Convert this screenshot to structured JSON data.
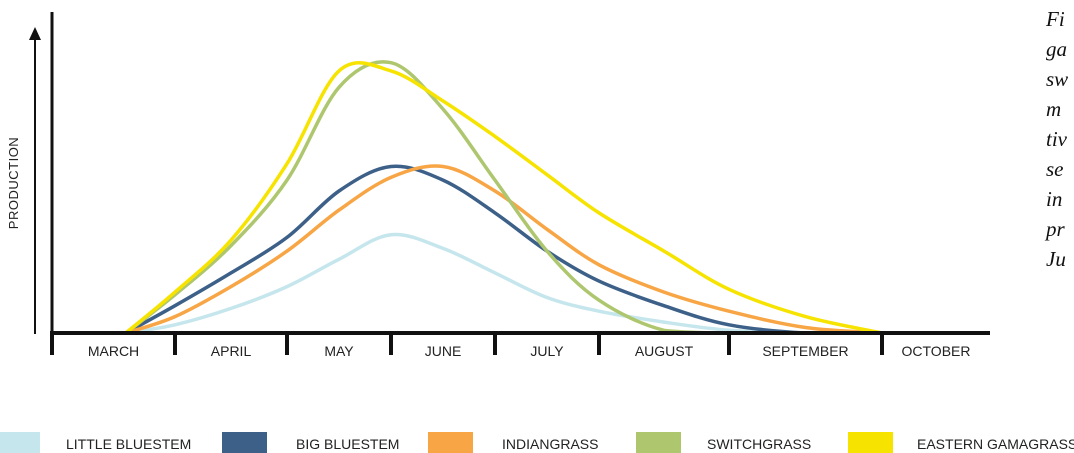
{
  "caption_lines": [
    "Fi",
    "ga",
    "sw",
    "m",
    "tiv",
    "se",
    "in",
    "pr",
    "Ju"
  ],
  "chart_data": {
    "type": "line",
    "title": "",
    "xlabel": "",
    "ylabel": "PRODUCTION",
    "categories": [
      "MARCH",
      "APRIL",
      "MAY",
      "JUNE",
      "JULY",
      "AUGUST",
      "SEPTEMBER",
      "OCTOBER"
    ],
    "grid": false,
    "legend": "bottom",
    "ylim": [
      0,
      100
    ],
    "y_tick_labels_shown": false,
    "x": [
      0.6,
      1.0,
      1.5,
      2.0,
      2.5,
      3.0,
      3.5,
      4.0,
      4.5,
      5.0,
      5.5,
      6.0,
      6.5,
      7.0
    ],
    "series": [
      {
        "name": "LITTLE BLUESTEM",
        "color": "#c5e6ec",
        "values": [
          0,
          3,
          9,
          17,
          27,
          36,
          31,
          22,
          13,
          8,
          4,
          1,
          0,
          0
        ]
      },
      {
        "name": "BIG BLUESTEM",
        "color": "#3d6088",
        "values": [
          0,
          10,
          22,
          35,
          52,
          61,
          56,
          44,
          30,
          19,
          10,
          3,
          0,
          0
        ]
      },
      {
        "name": "INDIANGRASS",
        "color": "#f7a545",
        "values": [
          0,
          6,
          17,
          30,
          45,
          57,
          61,
          52,
          38,
          25,
          15,
          8,
          2,
          0
        ]
      },
      {
        "name": "SWITCHGRASS",
        "color": "#aec76f",
        "values": [
          0,
          14,
          32,
          56,
          90,
          99,
          82,
          56,
          30,
          12,
          1,
          0,
          0,
          0
        ]
      },
      {
        "name": "EASTERN GAMAGRASS",
        "color": "#f7e300",
        "values": [
          0,
          15,
          34,
          62,
          96,
          96,
          85,
          72,
          58,
          44,
          30,
          16,
          6,
          0
        ]
      }
    ]
  }
}
